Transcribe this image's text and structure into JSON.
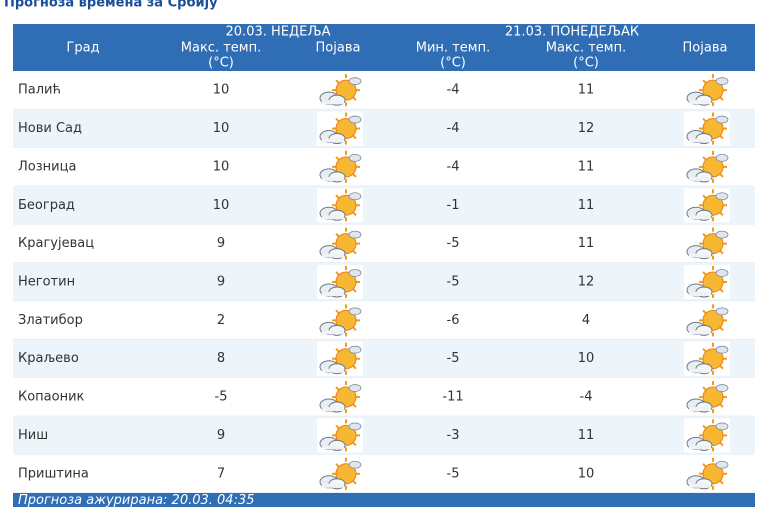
{
  "title": "Прогноза времена за Србију",
  "table": {
    "header": {
      "city": "Град",
      "day1": "20.03. НЕДЕЉА",
      "day2": "21.03. ПОНЕДЕЉАК",
      "columns": [
        {
          "label": "Макс. темп.",
          "unit": "(°C)"
        },
        {
          "label": "Појава"
        },
        {
          "label": "Мин. темп.",
          "unit": "(°C)"
        },
        {
          "label": "Макс. темп.",
          "unit": "(°C)"
        },
        {
          "label": "Појава"
        }
      ]
    },
    "rows": [
      [
        "Палић",
        10,
        -4,
        11
      ],
      [
        "Нови Сад",
        10,
        -4,
        12
      ],
      [
        "Лозница",
        10,
        -4,
        11
      ],
      [
        "Београд",
        10,
        -1,
        11
      ],
      [
        "Крагујевац",
        9,
        -5,
        11
      ],
      [
        "Неготин",
        9,
        -5,
        12
      ],
      [
        "Златибор",
        2,
        -6,
        4
      ],
      [
        "Краљево",
        8,
        -5,
        10
      ],
      [
        "Копаоник",
        -5,
        -11,
        -4
      ],
      [
        "Ниш",
        9,
        -3,
        11
      ],
      [
        "Приштина",
        7,
        -5,
        10
      ]
    ]
  },
  "footer": "Прогноза ажурирана:  20.03. 04:35"
}
